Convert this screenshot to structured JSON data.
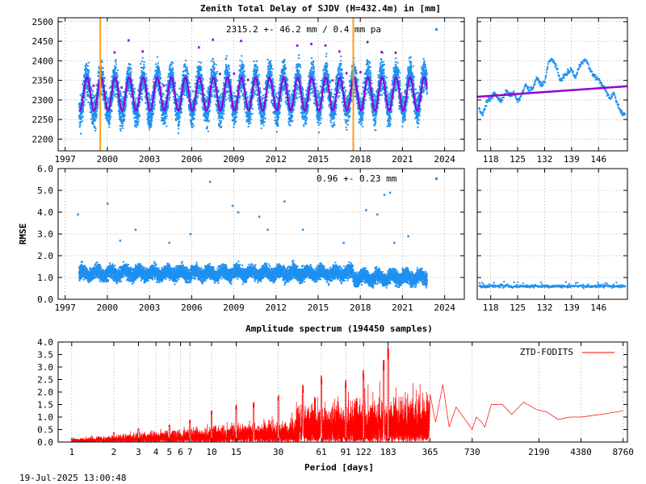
{
  "page": {
    "title": "Zenith Total Delay of SJDV (H=432.4m) in [mm]",
    "timestamp": "19-Jul-2025 13:00:48"
  },
  "chart_data": [
    {
      "id": "ztd",
      "type": "scatter",
      "title": "Zenith Total Delay of SJDV (H=432.4m) in [mm]",
      "stats_label": "2315.2 +-  46.2 mm /  0.4 mm pa",
      "x_ticks": [
        "1997",
        "2000",
        "2003",
        "2006",
        "2009",
        "2012",
        "2015",
        "2018",
        "2021",
        "2024"
      ],
      "y_ticks": [
        "2200",
        "2250",
        "2300",
        "2350",
        "2400",
        "2450",
        "2500"
      ],
      "xlim": [
        1996.5,
        2025.4
      ],
      "ylim": [
        2170,
        2510
      ],
      "mean": 2315.2,
      "seasonal_amplitude": 46,
      "trend_mm_per_year": 0.4,
      "data_start": 1998.0,
      "data_end": 2022.75,
      "event_markers": [
        1999.5,
        2017.5
      ],
      "colors": {
        "points": "#1e90f0",
        "model": "#9400d3",
        "events": "#ff9e1b"
      }
    },
    {
      "id": "ztd-zoom",
      "type": "scatter",
      "x_ticks": [
        "118",
        "125",
        "132",
        "139",
        "146"
      ],
      "xlim": [
        114.5,
        153.5
      ],
      "ylim": [
        2170,
        2510
      ],
      "series": [
        {
          "x": [
            115,
            116,
            117,
            118,
            119,
            120,
            121,
            122,
            123,
            124,
            125,
            126,
            127,
            128,
            129,
            130,
            131,
            132,
            133,
            134,
            135,
            136,
            137,
            138,
            139,
            140,
            141,
            142,
            143,
            144,
            145,
            146,
            147,
            148,
            149,
            150,
            151,
            152,
            153
          ],
          "y": [
            2275,
            2262,
            2296,
            2305,
            2318,
            2302,
            2298,
            2326,
            2310,
            2318,
            2296,
            2312,
            2338,
            2325,
            2330,
            2357,
            2340,
            2345,
            2395,
            2405,
            2386,
            2350,
            2360,
            2370,
            2378,
            2356,
            2385,
            2402,
            2398,
            2372,
            2360,
            2352,
            2338,
            2320,
            2302,
            2318,
            2286,
            2268,
            2262
          ]
        }
      ],
      "trend_start": 2308,
      "trend_end": 2335
    },
    {
      "id": "rmse",
      "type": "scatter",
      "ylabel": "RMSE",
      "stats_label": "0.96 +-  0.23 mm",
      "x_ticks": [
        "1997",
        "2000",
        "2003",
        "2006",
        "2009",
        "2012",
        "2015",
        "2018",
        "2021",
        "2024"
      ],
      "y_ticks": [
        "0.0",
        "1.0",
        "2.0",
        "3.0",
        "4.0",
        "5.0",
        "6.0"
      ],
      "xlim": [
        1996.5,
        2025.4
      ],
      "ylim": [
        0,
        6
      ],
      "typical_value": 1.2,
      "outliers": [
        [
          1997.9,
          3.9
        ],
        [
          2000.0,
          4.4
        ],
        [
          2000.9,
          2.7
        ],
        [
          2002.0,
          3.2
        ],
        [
          2004.4,
          2.6
        ],
        [
          2005.9,
          3.0
        ],
        [
          2007.3,
          5.4
        ],
        [
          2008.9,
          4.3
        ],
        [
          2009.3,
          4.0
        ],
        [
          2010.8,
          3.8
        ],
        [
          2011.4,
          3.2
        ],
        [
          2012.6,
          4.5
        ],
        [
          2013.9,
          3.2
        ],
        [
          2016.8,
          2.6
        ],
        [
          2018.4,
          4.1
        ],
        [
          2019.2,
          3.9
        ],
        [
          2019.7,
          4.8
        ],
        [
          2020.1,
          4.9
        ],
        [
          2020.4,
          2.6
        ],
        [
          2021.4,
          2.9
        ]
      ],
      "color": "#1e90f0"
    },
    {
      "id": "rmse-zoom",
      "type": "scatter",
      "x_ticks": [
        "118",
        "125",
        "132",
        "139",
        "146"
      ],
      "xlim": [
        114.5,
        153.5
      ],
      "ylim": [
        0,
        6
      ],
      "typical_value": 0.6
    },
    {
      "id": "spectrum",
      "type": "line",
      "title": "Amplitude spectrum (194450 samples)",
      "xlabel": "Period [days]",
      "legend": "ZTD-FODITS",
      "x_ticks": [
        "1",
        "2",
        "3",
        "4",
        "5",
        "6",
        "7",
        "10",
        "15",
        "30",
        "61",
        "91",
        "122",
        "183",
        "365",
        "730",
        "2190",
        "4380",
        "8760"
      ],
      "y_ticks": [
        "0.0",
        "0.5",
        "1.0",
        "1.5",
        "2.0",
        "2.5",
        "3.0",
        "3.5",
        "4.0"
      ],
      "x_scale": "log",
      "xlim": [
        0.8,
        9400
      ],
      "ylim": [
        0,
        4
      ],
      "peaks": [
        [
          183,
          3.85
        ],
        [
          170,
          3.3
        ],
        [
          122,
          2.9
        ],
        [
          91,
          2.5
        ],
        [
          61,
          2.7
        ],
        [
          45,
          2.3
        ],
        [
          30,
          1.9
        ],
        [
          20,
          1.6
        ],
        [
          15,
          1.5
        ],
        [
          10,
          1.3
        ],
        [
          7,
          0.9
        ],
        [
          5,
          0.7
        ],
        [
          3,
          0.55
        ],
        [
          2,
          0.4
        ]
      ],
      "long_periods": [
        [
          365,
          1.9
        ],
        [
          400,
          0.8
        ],
        [
          450,
          2.3
        ],
        [
          500,
          0.6
        ],
        [
          560,
          1.4
        ],
        [
          650,
          0.9
        ],
        [
          730,
          0.5
        ],
        [
          780,
          1.0
        ],
        [
          850,
          0.8
        ],
        [
          900,
          0.6
        ],
        [
          1000,
          1.5
        ],
        [
          1200,
          1.5
        ],
        [
          1400,
          1.1
        ],
        [
          1700,
          1.6
        ],
        [
          2100,
          1.3
        ],
        [
          2500,
          1.2
        ],
        [
          3000,
          0.9
        ],
        [
          3650,
          1.0
        ],
        [
          4380,
          1.0
        ],
        [
          6000,
          1.1
        ],
        [
          8760,
          1.25
        ]
      ],
      "color": "#ff0000"
    }
  ]
}
